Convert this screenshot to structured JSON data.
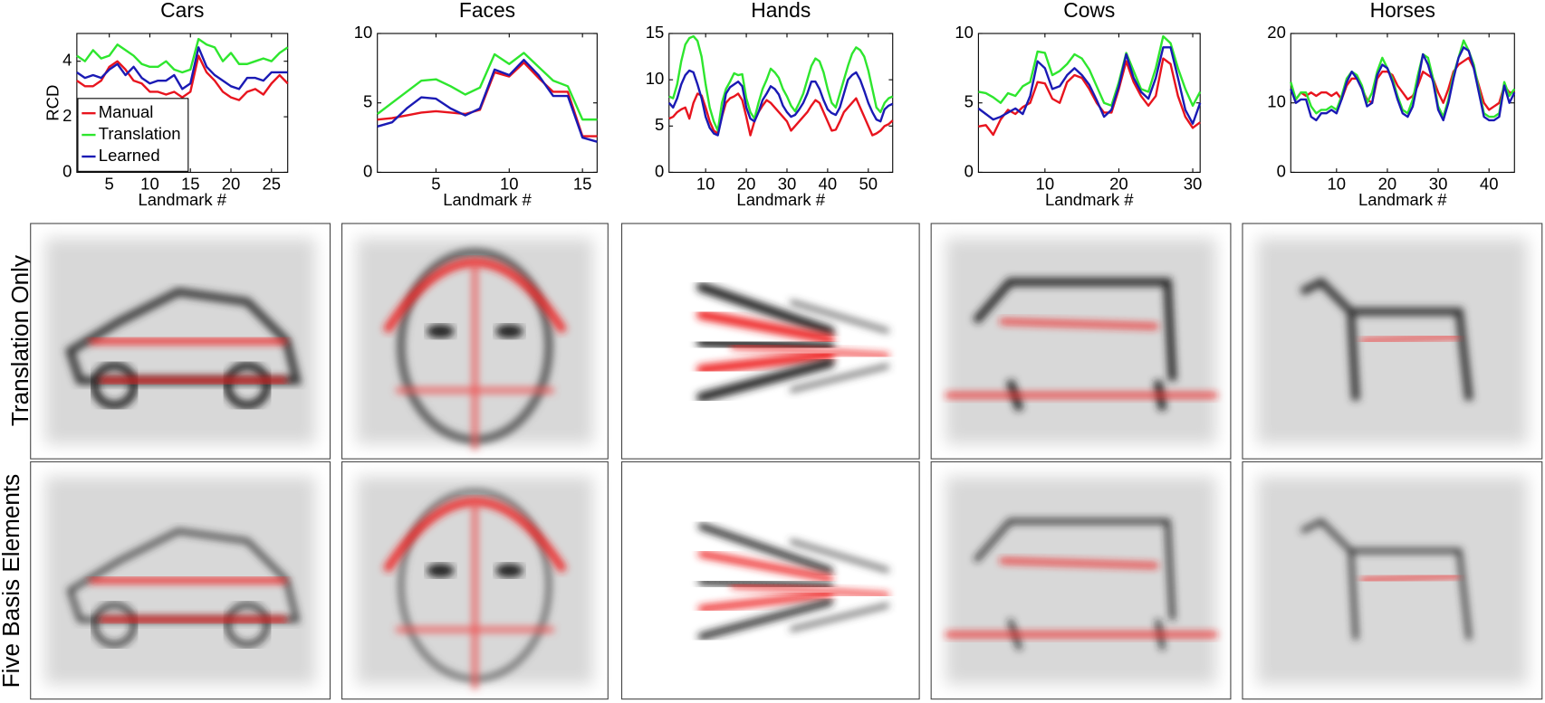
{
  "chart_data": [
    {
      "type": "line",
      "title": "Cars",
      "xlabel": "Landmark #",
      "ylabel": "RCD",
      "legend": "lower left",
      "x": [
        1,
        2,
        3,
        4,
        5,
        6,
        7,
        8,
        9,
        10,
        11,
        12,
        13,
        14,
        15,
        16,
        17,
        18,
        19,
        20,
        21,
        22,
        23,
        24,
        25,
        26,
        27
      ],
      "xlim": [
        1,
        27
      ],
      "xticks": [
        5,
        10,
        15,
        20,
        25
      ],
      "ylim": [
        0,
        5
      ],
      "yticks": [
        0,
        2,
        4
      ],
      "series": [
        {
          "name": "Manual",
          "color": "#e8141e",
          "values": [
            3.3,
            3.1,
            3.1,
            3.3,
            3.8,
            4.0,
            3.7,
            3.3,
            3.2,
            2.9,
            2.9,
            2.8,
            2.9,
            2.7,
            2.9,
            4.2,
            3.6,
            3.3,
            2.9,
            2.7,
            2.6,
            2.9,
            3.0,
            2.8,
            3.2,
            3.5,
            3.2
          ]
        },
        {
          "name": "Translation",
          "color": "#2ee62e",
          "values": [
            4.2,
            4.0,
            4.4,
            4.1,
            4.2,
            4.6,
            4.4,
            4.2,
            3.9,
            3.8,
            3.8,
            4.0,
            3.7,
            3.6,
            3.7,
            4.8,
            4.6,
            4.5,
            4.0,
            4.3,
            3.9,
            3.9,
            4.0,
            4.1,
            4.0,
            4.3,
            4.5
          ]
        },
        {
          "name": "Learned",
          "color": "#1a1ab4",
          "values": [
            3.6,
            3.4,
            3.5,
            3.4,
            3.7,
            3.9,
            3.5,
            3.8,
            3.4,
            3.2,
            3.3,
            3.3,
            3.5,
            3.0,
            3.2,
            4.5,
            3.8,
            3.5,
            3.3,
            3.1,
            3.0,
            3.4,
            3.4,
            3.3,
            3.6,
            3.6,
            3.6
          ]
        }
      ]
    },
    {
      "type": "line",
      "title": "Faces",
      "xlabel": "Landmark #",
      "x": [
        1,
        2,
        3,
        4,
        5,
        6,
        7,
        8,
        9,
        10,
        11,
        12,
        13,
        14,
        15,
        16
      ],
      "xlim": [
        1,
        16
      ],
      "xticks": [
        5,
        10,
        15
      ],
      "ylim": [
        0,
        10
      ],
      "yticks": [
        0,
        5,
        10
      ],
      "series": [
        {
          "color": "#e8141e",
          "values": [
            3.8,
            3.9,
            4.1,
            4.3,
            4.4,
            4.3,
            4.2,
            4.5,
            7.2,
            6.9,
            7.9,
            6.8,
            5.8,
            5.8,
            2.6,
            2.6
          ]
        },
        {
          "color": "#2ee62e",
          "values": [
            4.2,
            5.0,
            5.8,
            6.6,
            6.7,
            6.2,
            5.6,
            6.1,
            8.5,
            7.8,
            8.6,
            7.6,
            6.6,
            6.2,
            3.8,
            3.8
          ]
        },
        {
          "color": "#1a1ab4",
          "values": [
            3.3,
            3.6,
            4.6,
            5.4,
            5.3,
            4.6,
            4.1,
            4.6,
            7.4,
            7.0,
            8.1,
            7.0,
            5.5,
            5.5,
            2.5,
            2.2
          ]
        }
      ]
    },
    {
      "type": "line",
      "title": "Hands",
      "xlabel": "Landmark #",
      "x": [
        1,
        2,
        3,
        4,
        5,
        6,
        7,
        8,
        9,
        10,
        11,
        12,
        13,
        14,
        15,
        16,
        17,
        18,
        19,
        20,
        21,
        22,
        23,
        24,
        25,
        26,
        27,
        28,
        29,
        30,
        31,
        32,
        33,
        34,
        35,
        36,
        37,
        38,
        39,
        40,
        41,
        42,
        43,
        44,
        45,
        46,
        47,
        48,
        49,
        50,
        51,
        52,
        53,
        54,
        55,
        56
      ],
      "xlim": [
        1,
        56
      ],
      "xticks": [
        10,
        20,
        30,
        40,
        50
      ],
      "ylim": [
        0,
        15
      ],
      "yticks": [
        0,
        5,
        10,
        15
      ],
      "series": [
        {
          "color": "#e8141e",
          "values": [
            5.8,
            6.0,
            6.5,
            6.8,
            7.0,
            5.8,
            7.5,
            8.5,
            8.3,
            7.0,
            5.5,
            4.5,
            4.2,
            6.0,
            7.5,
            8.0,
            8.2,
            8.5,
            7.8,
            6.0,
            4.0,
            5.5,
            6.5,
            7.2,
            7.8,
            7.5,
            7.0,
            6.5,
            6.0,
            5.5,
            4.5,
            5.0,
            5.5,
            6.0,
            6.5,
            7.2,
            7.8,
            7.5,
            6.5,
            5.5,
            4.5,
            4.6,
            5.5,
            6.5,
            7.0,
            7.5,
            8.0,
            7.0,
            6.0,
            5.0,
            4.0,
            4.2,
            4.5,
            5.0,
            5.2,
            5.6
          ]
        },
        {
          "color": "#2ee62e",
          "values": [
            8.2,
            8.0,
            9.5,
            12.0,
            13.8,
            14.5,
            14.7,
            14.2,
            12.5,
            9.5,
            7.0,
            5.5,
            4.5,
            7.5,
            9.0,
            9.8,
            10.7,
            10.5,
            10.6,
            8.0,
            6.5,
            5.8,
            7.5,
            9.0,
            10.0,
            11.2,
            10.8,
            10.2,
            9.0,
            8.2,
            7.2,
            6.6,
            7.5,
            8.5,
            10.0,
            11.5,
            12.3,
            12.0,
            10.8,
            9.0,
            7.5,
            7.0,
            8.5,
            10.0,
            11.5,
            12.8,
            13.5,
            13.2,
            12.5,
            11.0,
            9.0,
            7.0,
            6.5,
            7.5,
            8.0,
            8.2
          ]
        },
        {
          "color": "#1a1ab4",
          "values": [
            7.5,
            7.0,
            8.0,
            9.5,
            10.5,
            11.0,
            10.8,
            9.5,
            8.0,
            6.0,
            4.8,
            4.2,
            4.0,
            6.0,
            8.5,
            9.2,
            9.5,
            9.8,
            9.3,
            7.0,
            5.8,
            5.5,
            6.5,
            7.8,
            8.5,
            9.3,
            9.0,
            8.4,
            7.2,
            6.5,
            6.0,
            6.2,
            6.8,
            7.5,
            8.5,
            9.8,
            9.8,
            9.0,
            7.8,
            6.8,
            6.4,
            6.2,
            7.0,
            8.5,
            10.0,
            10.5,
            10.8,
            10.0,
            8.8,
            7.5,
            6.5,
            5.7,
            5.5,
            6.8,
            7.2,
            7.4
          ]
        }
      ]
    },
    {
      "type": "line",
      "title": "Cows",
      "xlabel": "Landmark #",
      "x": [
        1,
        2,
        3,
        4,
        5,
        6,
        7,
        8,
        9,
        10,
        11,
        12,
        13,
        14,
        15,
        16,
        17,
        18,
        19,
        20,
        21,
        22,
        23,
        24,
        25,
        26,
        27,
        28,
        29,
        30,
        31
      ],
      "xlim": [
        1,
        31
      ],
      "xticks": [
        10,
        20,
        30
      ],
      "ylim": [
        0,
        10
      ],
      "yticks": [
        0,
        5,
        10
      ],
      "series": [
        {
          "color": "#e8141e",
          "values": [
            3.3,
            3.4,
            2.7,
            3.8,
            4.5,
            4.2,
            4.7,
            5.0,
            6.5,
            6.4,
            5.3,
            5.0,
            6.5,
            7.0,
            6.8,
            6.0,
            5.0,
            4.3,
            4.3,
            6.0,
            8.0,
            6.5,
            5.5,
            4.8,
            5.5,
            8.2,
            7.8,
            5.5,
            4.0,
            3.2,
            3.6
          ]
        },
        {
          "color": "#2ee62e",
          "values": [
            5.8,
            5.7,
            5.4,
            5.0,
            5.7,
            5.5,
            6.2,
            6.5,
            8.7,
            8.6,
            7.0,
            7.3,
            7.8,
            8.5,
            8.2,
            7.4,
            6.2,
            5.0,
            4.8,
            6.5,
            8.6,
            7.3,
            6.0,
            5.8,
            7.5,
            9.8,
            9.3,
            7.5,
            6.0,
            4.8,
            5.8
          ]
        },
        {
          "color": "#1a1ab4",
          "values": [
            4.6,
            4.2,
            3.8,
            4.0,
            4.3,
            4.6,
            4.2,
            5.5,
            8.0,
            7.5,
            6.0,
            6.2,
            7.0,
            7.5,
            7.0,
            6.3,
            5.2,
            4.0,
            4.5,
            6.2,
            8.5,
            6.8,
            5.8,
            5.3,
            6.8,
            9.0,
            9.0,
            6.8,
            4.5,
            3.5,
            5.0
          ]
        }
      ]
    },
    {
      "type": "line",
      "title": "Horses",
      "xlabel": "Landmark #",
      "x": [
        1,
        2,
        3,
        4,
        5,
        6,
        7,
        8,
        9,
        10,
        11,
        12,
        13,
        14,
        15,
        16,
        17,
        18,
        19,
        20,
        21,
        22,
        23,
        24,
        25,
        26,
        27,
        28,
        29,
        30,
        31,
        32,
        33,
        34,
        35,
        36,
        37,
        38,
        39,
        40,
        41,
        42,
        43,
        44,
        45
      ],
      "xlim": [
        1,
        45
      ],
      "xticks": [
        10,
        20,
        30,
        40
      ],
      "ylim": [
        0,
        20
      ],
      "yticks": [
        0,
        10,
        20
      ],
      "series": [
        {
          "color": "#e8141e",
          "values": [
            12.0,
            10.5,
            11.5,
            11.0,
            11.5,
            11.0,
            11.5,
            11.5,
            11.0,
            11.5,
            10.5,
            12.5,
            13.5,
            13.5,
            12.0,
            10.5,
            10.0,
            13.5,
            14.5,
            14.5,
            14.0,
            12.5,
            11.5,
            10.5,
            11.0,
            12.5,
            14.5,
            14.0,
            13.5,
            11.5,
            10.0,
            12.0,
            14.5,
            15.5,
            16.0,
            16.5,
            15.0,
            12.5,
            10.0,
            9.0,
            9.5,
            10.0,
            12.5,
            11.5,
            11.5
          ]
        },
        {
          "color": "#2ee62e",
          "values": [
            13.0,
            10.5,
            11.5,
            11.5,
            9.5,
            8.5,
            9.0,
            9.0,
            9.5,
            9.0,
            11.0,
            13.5,
            14.5,
            14.0,
            12.5,
            10.0,
            11.5,
            14.5,
            16.5,
            15.0,
            13.5,
            11.0,
            9.0,
            8.5,
            10.5,
            14.0,
            17.0,
            16.5,
            13.5,
            9.5,
            8.0,
            10.5,
            14.0,
            16.5,
            19.0,
            17.5,
            15.5,
            12.0,
            8.5,
            8.0,
            8.0,
            8.5,
            13.0,
            11.0,
            12.0
          ]
        },
        {
          "color": "#1a1ab4",
          "values": [
            12.0,
            10.0,
            10.5,
            10.5,
            8.0,
            7.5,
            8.5,
            8.5,
            9.0,
            8.5,
            10.5,
            13.0,
            14.5,
            13.5,
            12.0,
            9.5,
            10.0,
            14.0,
            15.5,
            15.0,
            13.0,
            10.5,
            8.5,
            8.0,
            9.5,
            13.0,
            17.0,
            15.5,
            13.0,
            9.0,
            7.5,
            10.0,
            13.5,
            16.5,
            18.0,
            17.5,
            15.0,
            11.5,
            8.0,
            7.5,
            7.5,
            8.0,
            12.5,
            10.0,
            11.5
          ]
        }
      ]
    }
  ],
  "row_labels": [
    "Translation Only",
    "Five Basis Elements"
  ]
}
